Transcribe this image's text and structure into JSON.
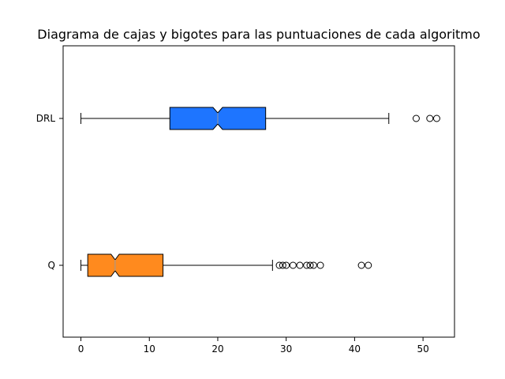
{
  "chart_data": {
    "type": "boxplot",
    "orientation": "horizontal",
    "title": "Diagrama de cajas y bigotes para las puntuaciones de cada algoritmo",
    "xlabel": "",
    "ylabel": "",
    "xlim": [
      -2.6,
      54.6
    ],
    "xticks": [
      0,
      10,
      20,
      30,
      40,
      50
    ],
    "grid": false,
    "notched": true,
    "categories": [
      "Q",
      "DRL"
    ],
    "series": [
      {
        "category": "Q",
        "color": "#ff8a1e",
        "whisker_low": 0,
        "q1": 1,
        "median": 5,
        "q3": 12,
        "whisker_high": 28,
        "notch_low": 4.4,
        "notch_high": 5.6,
        "outliers": [
          29,
          29.5,
          30,
          31,
          32,
          33,
          33.5,
          34,
          35,
          41,
          42
        ]
      },
      {
        "category": "DRL",
        "color": "#1e75ff",
        "whisker_low": 0,
        "q1": 13,
        "median": 20,
        "q3": 27,
        "whisker_high": 45,
        "notch_low": 19.3,
        "notch_high": 20.7,
        "outliers": [
          49,
          51,
          52
        ]
      }
    ]
  }
}
